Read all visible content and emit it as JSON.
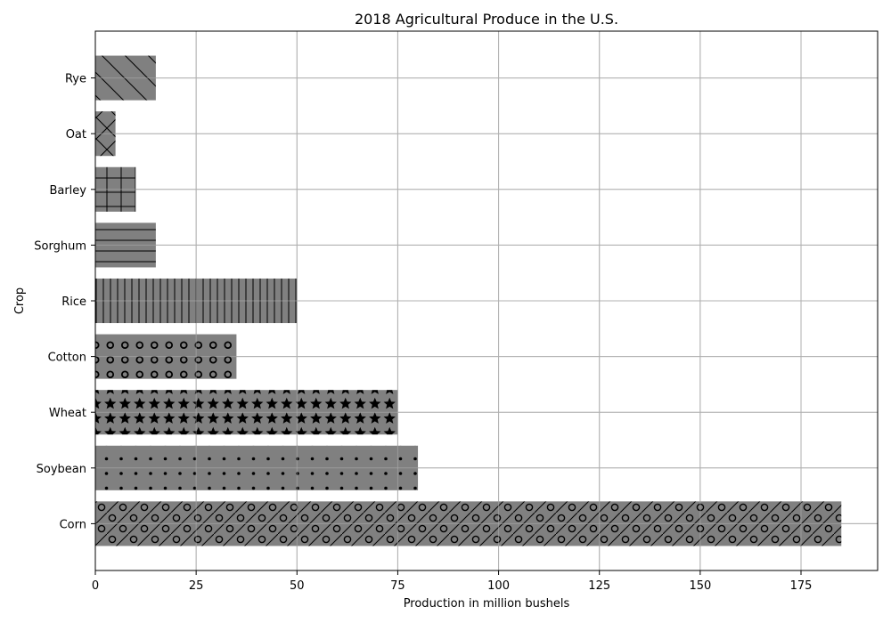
{
  "chart_data": {
    "type": "bar",
    "orientation": "horizontal",
    "title": "2018 Agricultural Produce in the U.S.",
    "xlabel": "Production in million bushels",
    "ylabel": "Crop",
    "categories": [
      "Corn",
      "Soybean",
      "Wheat",
      "Cotton",
      "Rice",
      "Sorghum",
      "Barley",
      "Oat",
      "Rye"
    ],
    "values": [
      185,
      80,
      75,
      35,
      50,
      15,
      10,
      5,
      15
    ],
    "patterns": [
      "slash-circle",
      "dots",
      "stars",
      "circles",
      "vertical",
      "horizontal",
      "grid",
      "cross",
      "backslash"
    ],
    "xlim": [
      0,
      194
    ],
    "xticks": [
      0,
      25,
      50,
      75,
      100,
      125,
      150,
      175
    ],
    "grid": true,
    "bar_color": "#808080",
    "hatch_color": "#000000",
    "grid_color": "#b0b0b0"
  }
}
